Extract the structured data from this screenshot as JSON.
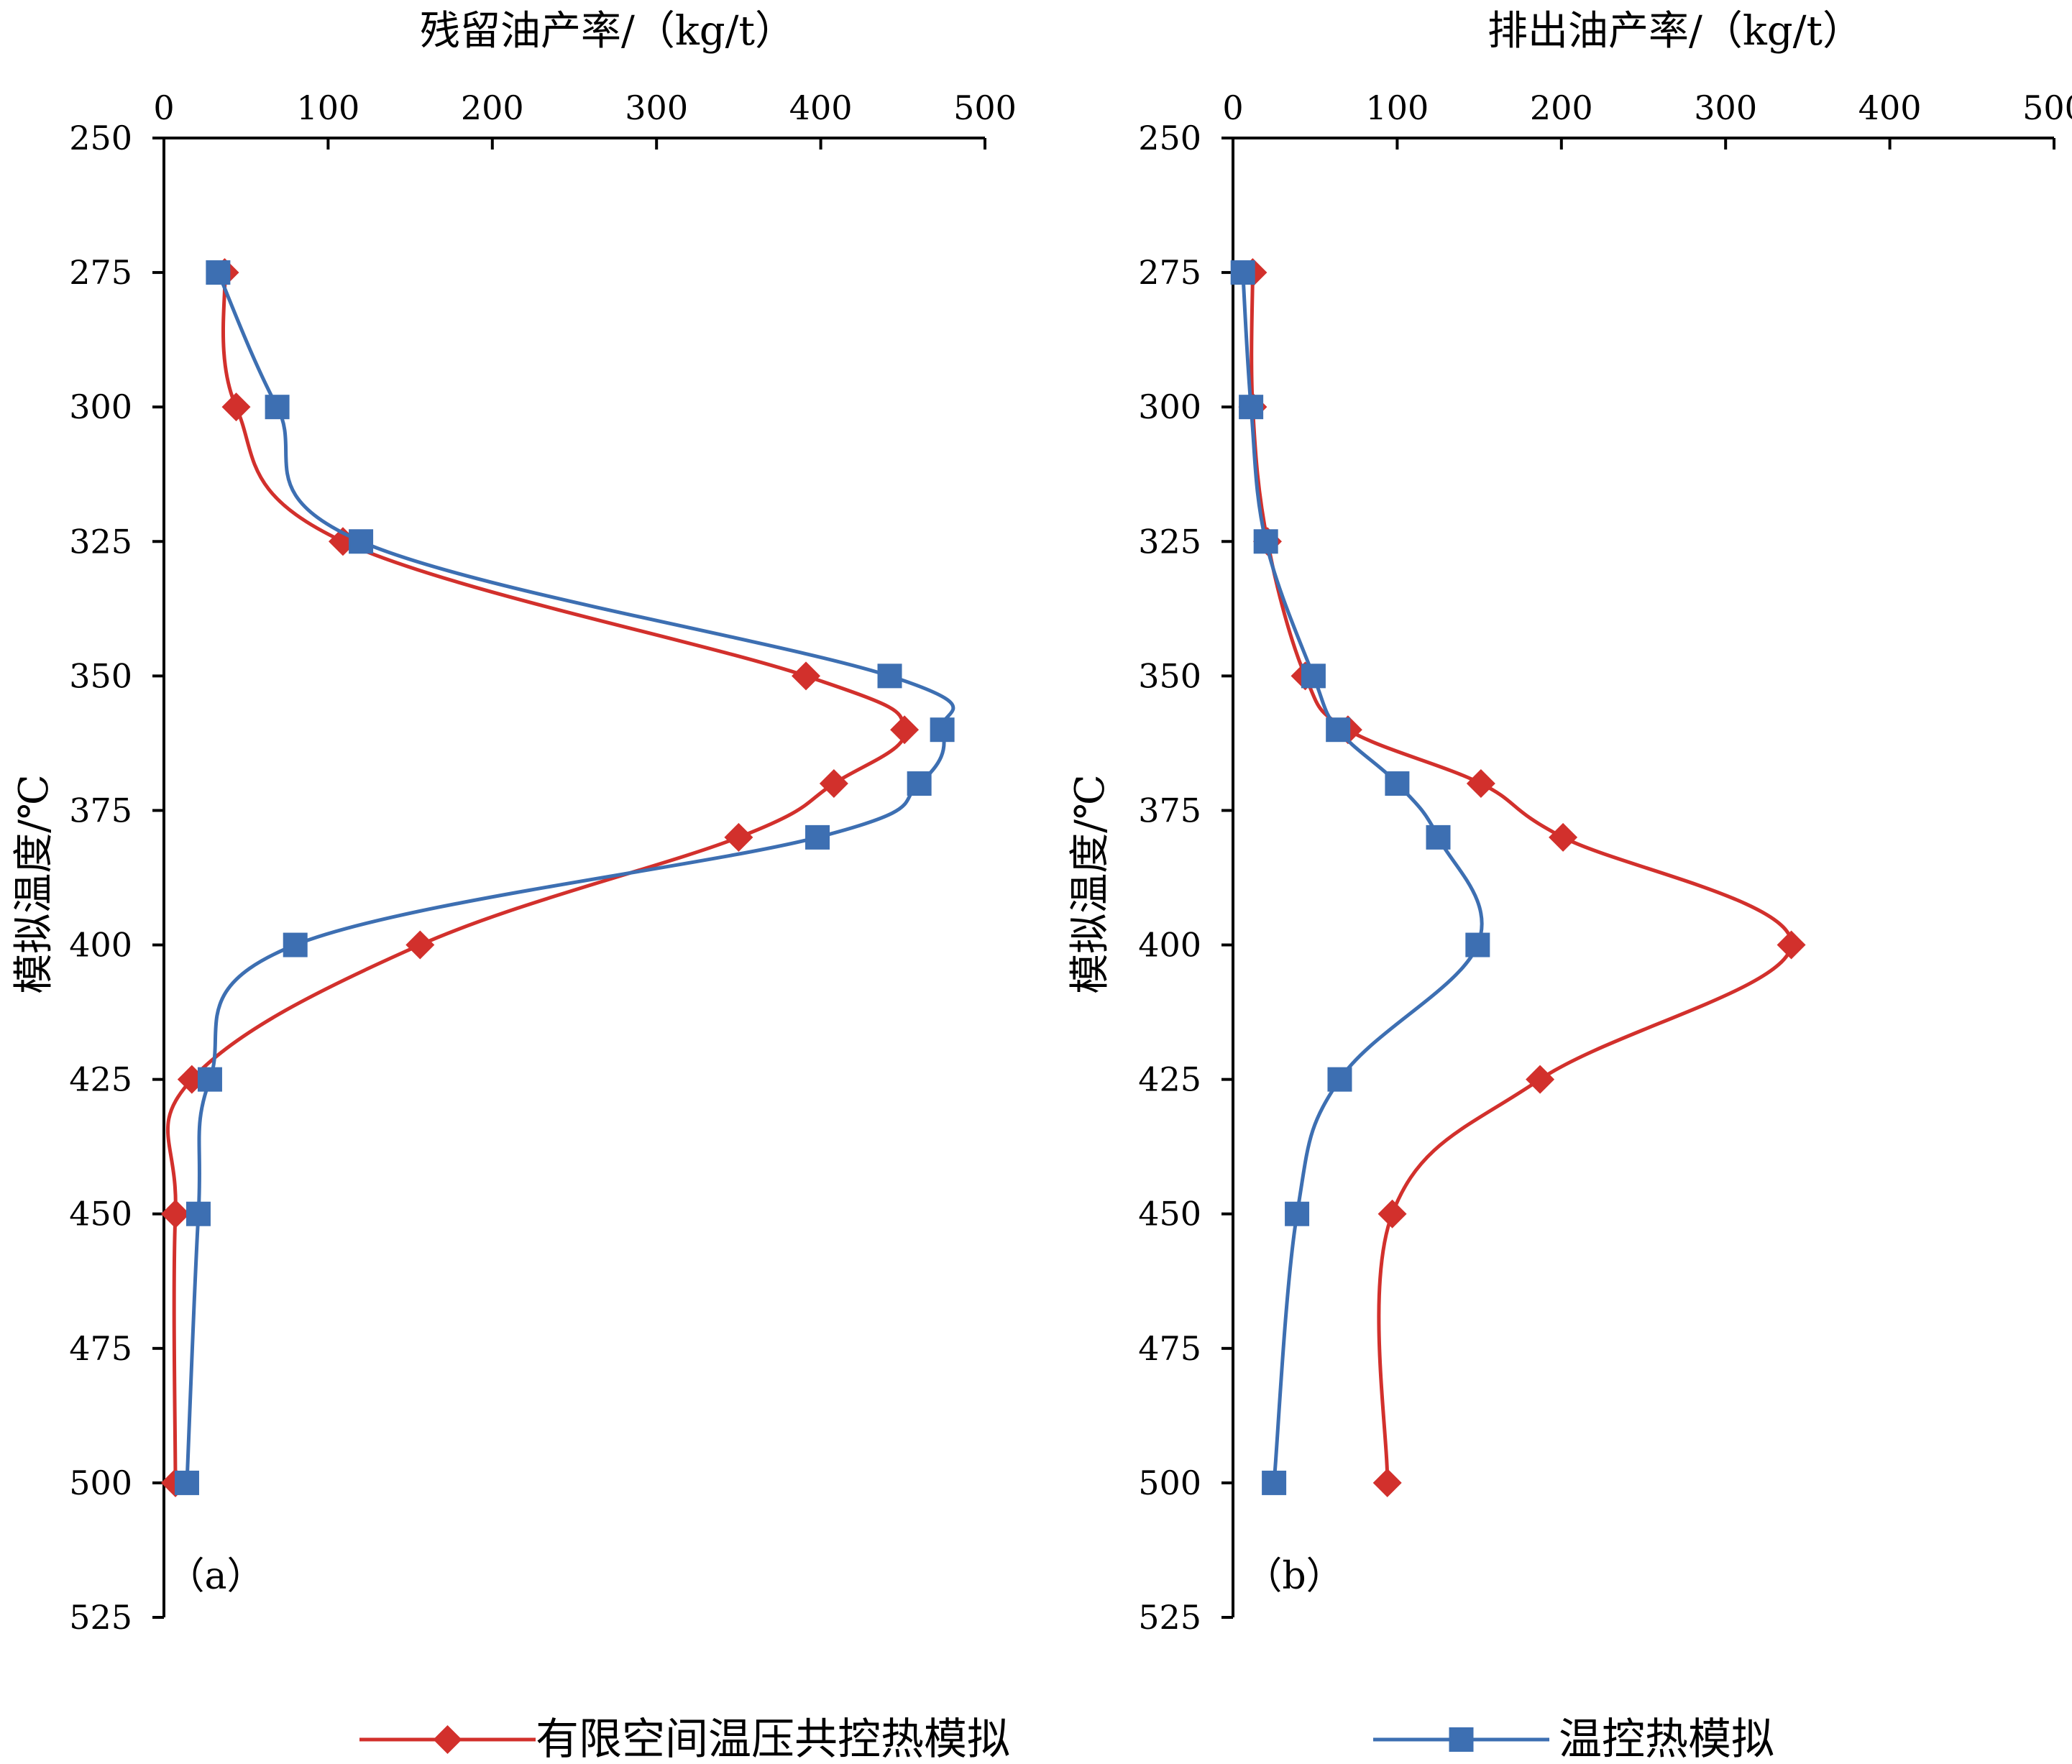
{
  "chart_data": [
    {
      "type": "line",
      "panel_label": "（a）",
      "title": "",
      "xlabel": "残留油产率/（kg/t）",
      "ylabel": "模拟温度/℃",
      "xlim": [
        0,
        500
      ],
      "ylim": [
        250,
        525
      ],
      "y_inverted": true,
      "x_axis_position": "top",
      "x_ticks": [
        0,
        100,
        200,
        300,
        400,
        500
      ],
      "y_ticks": [
        250,
        275,
        300,
        325,
        350,
        375,
        400,
        425,
        450,
        475,
        500,
        525
      ],
      "grid": false,
      "series": [
        {
          "name": "有限空间温压共控热模拟",
          "color": "#d2302c",
          "marker": "diamond",
          "points": [
            [
              37,
              275
            ],
            [
              44,
              300
            ],
            [
              109,
              325
            ],
            [
              391,
              350
            ],
            [
              451,
              360
            ],
            [
              408,
              370
            ],
            [
              350,
              380
            ],
            [
              156,
              400
            ],
            [
              17,
              425
            ],
            [
              7,
              450
            ],
            [
              7,
              500
            ]
          ]
        },
        {
          "name": "温控热模拟",
          "color": "#3d6fb2",
          "marker": "square",
          "points": [
            [
              33,
              275
            ],
            [
              69,
              300
            ],
            [
              120,
              325
            ],
            [
              442,
              350
            ],
            [
              474,
              360
            ],
            [
              460,
              370
            ],
            [
              398,
              380
            ],
            [
              80,
              400
            ],
            [
              28,
              425
            ],
            [
              21,
              450
            ],
            [
              14,
              500
            ]
          ]
        }
      ]
    },
    {
      "type": "line",
      "panel_label": "（b）",
      "title": "",
      "xlabel": "排出油产率/（kg/t）",
      "ylabel": "模拟温度/℃",
      "xlim": [
        0,
        500
      ],
      "ylim": [
        250,
        525
      ],
      "y_inverted": true,
      "x_axis_position": "top",
      "x_ticks": [
        0,
        100,
        200,
        300,
        400,
        500
      ],
      "y_ticks": [
        250,
        275,
        300,
        325,
        350,
        375,
        400,
        425,
        450,
        475,
        500,
        525
      ],
      "grid": false,
      "series": [
        {
          "name": "有限空间温压共控热模拟",
          "color": "#d2302c",
          "marker": "diamond",
          "points": [
            [
              12,
              275
            ],
            [
              12,
              300
            ],
            [
              21,
              325
            ],
            [
              44,
              350
            ],
            [
              70,
              360
            ],
            [
              151,
              370
            ],
            [
              201,
              380
            ],
            [
              340,
              400
            ],
            [
              187,
              425
            ],
            [
              97,
              450
            ],
            [
              94,
              500
            ]
          ]
        },
        {
          "name": "温控热模拟",
          "color": "#3d6fb2",
          "marker": "square",
          "points": [
            [
              6,
              275
            ],
            [
              11,
              300
            ],
            [
              20,
              325
            ],
            [
              49,
              350
            ],
            [
              64,
              360
            ],
            [
              100,
              370
            ],
            [
              125,
              380
            ],
            [
              149,
              400
            ],
            [
              65,
              425
            ],
            [
              39,
              450
            ],
            [
              25,
              500
            ]
          ]
        }
      ]
    }
  ],
  "legend": {
    "position": "bottom",
    "items": [
      {
        "label": "有限空间温压共控热模拟",
        "color": "#d2302c",
        "marker": "diamond"
      },
      {
        "label": "温控热模拟",
        "color": "#3d6fb2",
        "marker": "square"
      }
    ]
  }
}
